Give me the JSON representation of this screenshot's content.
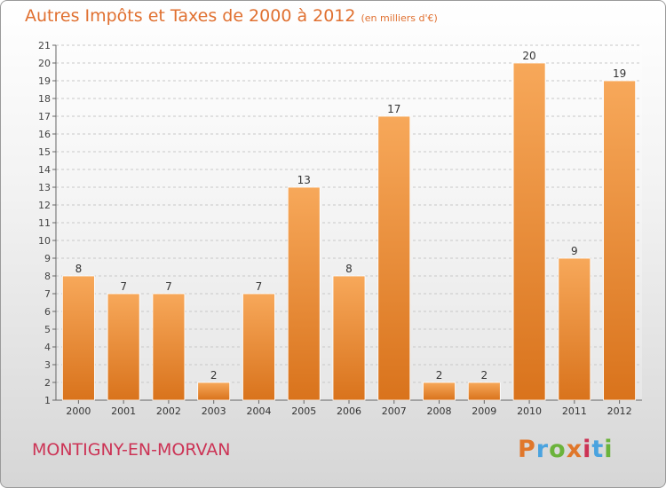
{
  "header": {
    "title": "Autres Impôts et Taxes de 2000 à 2012",
    "unit": "(en milliers d'€)"
  },
  "footer": {
    "location": "MONTIGNY-EN-MORVAN",
    "brand": "Proxiti"
  },
  "colors": {
    "title": "#e07030",
    "location": "#cc3355",
    "bar_top": "#f7a85a",
    "bar_bottom": "#d9731c",
    "brand_letters": [
      "#e0772b",
      "#4aa3df",
      "#6bb33b",
      "#e0772b",
      "#cc3355",
      "#4aa3df",
      "#6bb33b"
    ]
  },
  "chart_data": {
    "type": "bar",
    "title": "Autres Impôts et Taxes de 2000 à 2012",
    "subtitle": "(en milliers d'€)",
    "xlabel": "",
    "ylabel": "",
    "categories": [
      "2000",
      "2001",
      "2002",
      "2003",
      "2004",
      "2005",
      "2006",
      "2007",
      "2008",
      "2009",
      "2010",
      "2011",
      "2012"
    ],
    "values": [
      8,
      7,
      7,
      2,
      7,
      13,
      8,
      17,
      2,
      2,
      20,
      9,
      19
    ],
    "ylim": [
      1,
      21
    ],
    "yticks": [
      1,
      2,
      3,
      4,
      5,
      6,
      7,
      8,
      9,
      10,
      11,
      12,
      13,
      14,
      15,
      16,
      17,
      18,
      19,
      20,
      21
    ],
    "grid": true,
    "data_labels": true,
    "legend": "none"
  }
}
